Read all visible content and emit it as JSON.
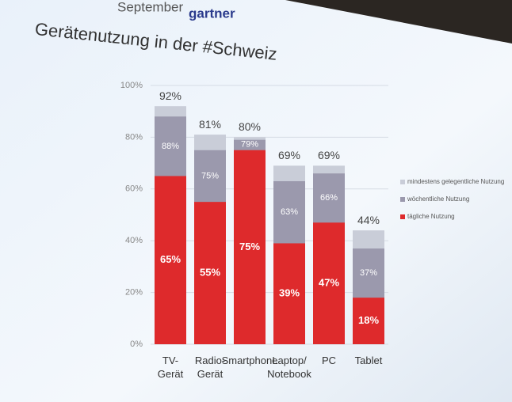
{
  "header": {
    "brand": "gartner",
    "month": "September"
  },
  "chart_data": {
    "type": "overlap-bar",
    "title": "Gerätenutzung in der #Schweiz",
    "categories": [
      "TV-\nGerät",
      "Radio-\nGerät",
      "Smartphone",
      "Laptop/\nNotebook",
      "PC",
      "Tablet"
    ],
    "series": [
      {
        "name": "tägliche Nutzung",
        "color": "#de2a2c",
        "values": [
          65,
          55,
          75,
          39,
          47,
          18
        ],
        "value_labels": [
          "65%",
          "55%",
          "75%",
          "39%",
          "47%",
          "18%"
        ]
      },
      {
        "name": "wöchentliche Nutzung",
        "color": "#9b99ad",
        "values": [
          88,
          75,
          79,
          63,
          66,
          37
        ],
        "value_labels": [
          "88%",
          "75%",
          "79%",
          "63%",
          "66%",
          "37%"
        ]
      },
      {
        "name": "mindestens gelegentliche Nutzung",
        "color": "#c9cdd8",
        "values": [
          92,
          81,
          80,
          69,
          69,
          44
        ],
        "value_labels": [
          "92%",
          "81%",
          "80%",
          "69%",
          "69%",
          "44%"
        ]
      }
    ],
    "ylim": [
      0,
      100
    ],
    "yticks": [
      {
        "value": 0,
        "label": "0%"
      },
      {
        "value": 20,
        "label": "20%"
      },
      {
        "value": 40,
        "label": "40%"
      },
      {
        "value": 60,
        "label": "60%"
      },
      {
        "value": 80,
        "label": "80%"
      },
      {
        "value": 100,
        "label": "100%"
      }
    ],
    "grid": true
  }
}
